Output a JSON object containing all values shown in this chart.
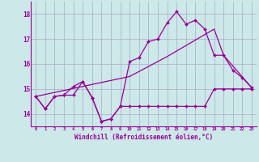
{
  "xlabel": "Windchill (Refroidissement éolien,°C)",
  "bg_color": "#cce8e8",
  "grid_color": "#aaaacc",
  "line_color": "#990099",
  "xlim": [
    -0.5,
    23.5
  ],
  "ylim": [
    13.5,
    18.5
  ],
  "yticks": [
    14,
    15,
    16,
    17,
    18
  ],
  "xticks": [
    0,
    1,
    2,
    3,
    4,
    5,
    6,
    7,
    8,
    9,
    10,
    11,
    12,
    13,
    14,
    15,
    16,
    17,
    18,
    19,
    20,
    21,
    22,
    23
  ],
  "line1_x": [
    0,
    1,
    2,
    3,
    4,
    5,
    6,
    7,
    8,
    9,
    10,
    11,
    12,
    13,
    14,
    15,
    16,
    17,
    18,
    19,
    20,
    21,
    22,
    23
  ],
  "line1_y": [
    14.7,
    14.2,
    14.7,
    14.75,
    14.75,
    15.3,
    14.65,
    13.7,
    13.8,
    14.3,
    14.3,
    14.3,
    14.3,
    14.3,
    14.3,
    14.3,
    14.3,
    14.3,
    14.3,
    15.0,
    15.0,
    15.0,
    15.0,
    15.0
  ],
  "line2_x": [
    0,
    1,
    2,
    3,
    4,
    5,
    6,
    7,
    8,
    9,
    10,
    11,
    12,
    13,
    14,
    15,
    16,
    17,
    18,
    19,
    20,
    21,
    22,
    23
  ],
  "line2_y": [
    14.7,
    14.2,
    14.7,
    14.75,
    15.1,
    15.3,
    14.65,
    13.7,
    13.8,
    14.3,
    16.1,
    16.25,
    16.9,
    17.0,
    17.65,
    18.1,
    17.6,
    17.75,
    17.4,
    16.35,
    16.35,
    15.75,
    15.45,
    15.05
  ],
  "line3_x": [
    0,
    5,
    10,
    14,
    19,
    20,
    23
  ],
  "line3_y": [
    14.7,
    15.1,
    15.5,
    16.3,
    17.4,
    16.35,
    15.05
  ]
}
